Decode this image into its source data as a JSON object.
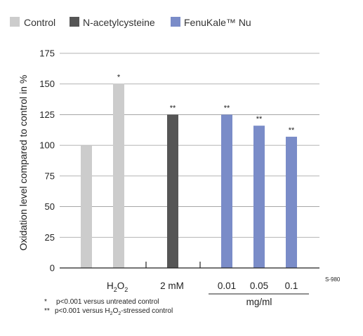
{
  "legend": [
    {
      "label": "Control",
      "color": "#cccccc"
    },
    {
      "label": "N-acetylcysteine",
      "color": "#555555"
    },
    {
      "label": "FenuKale™ Nu",
      "color": "#7a8cc8"
    }
  ],
  "axis": {
    "ylabel": "Oxidation level compared to control in %",
    "ticks": [
      "0",
      "25",
      "50",
      "75",
      "100",
      "125",
      "150",
      "175"
    ]
  },
  "groups": {
    "h2o2": "H",
    "h2o2_sub": "2",
    "h2o2_tail": "O",
    "h2o2_sub2": "2",
    "nac": "2 mM",
    "fenu": [
      "0.01",
      "0.05",
      "0.1"
    ],
    "fenu_unit": "mg/ml"
  },
  "footnotes": {
    "f1_mark": "*",
    "f1_text": "p<0.001 versus untreated control",
    "f2_mark": "**",
    "f2_text_a": "p<0.001 versus H",
    "f2_sub": "2",
    "f2_text_b": "O",
    "f2_sub2": "2",
    "f2_text_c": "-stressed control"
  },
  "code": "S-980",
  "chart_data": {
    "type": "bar",
    "ylabel": "Oxidation level compared to control in %",
    "ylim": [
      0,
      175
    ],
    "yticks": [
      0,
      25,
      50,
      75,
      100,
      125,
      150,
      175
    ],
    "grid": true,
    "legend_position": "top",
    "bars": [
      {
        "group": "",
        "series": "Control",
        "value": 100,
        "annotation": "",
        "color": "#cccccc"
      },
      {
        "group": "H2O2",
        "series": "Control",
        "value": 150,
        "annotation": "*",
        "color": "#cccccc"
      },
      {
        "group": "2 mM",
        "series": "N-acetylcysteine",
        "value": 125,
        "annotation": "**",
        "color": "#555555"
      },
      {
        "group": "0.01",
        "series": "FenuKale™ Nu",
        "value": 125,
        "annotation": "**",
        "color": "#7a8cc8"
      },
      {
        "group": "0.05",
        "series": "FenuKale™ Nu",
        "value": 116,
        "annotation": "**",
        "color": "#7a8cc8"
      },
      {
        "group": "0.1",
        "series": "FenuKale™ Nu",
        "value": 107,
        "annotation": "**",
        "color": "#7a8cc8"
      }
    ]
  }
}
